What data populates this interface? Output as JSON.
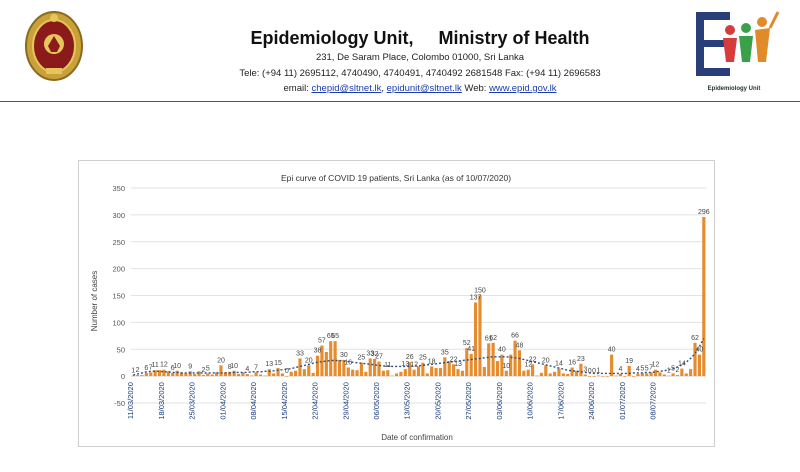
{
  "header": {
    "title": "Epidemiology Unit,     Ministry of Health",
    "address": "231, De Saram Place, Colombo 01000, Sri Lanka",
    "phone_line": "Tele: (+94 11) 2695112, 4740490, 4740491, 4740492 2681548  Fax: (+94 11) 2696583",
    "email_label": "email: ",
    "email1": "chepid@sltnet.lk",
    "email_sep": ", ",
    "email2": "epidunit@sltnet.lk",
    "web_label": " Web: ",
    "web": "www.epid.gov.lk",
    "logo_caption": "Epidemiology Unit"
  },
  "colors": {
    "bar": "#e48c2e",
    "trend": "#2f4f7f",
    "rule": "#555555"
  },
  "chart_data": {
    "type": "bar",
    "title": "Epi curve of COVID 19 patients, Sri Lanka  (as of 10/07/2020)",
    "xlabel": "Date of confirmation",
    "ylabel": "Number of cases",
    "ylim": [
      -50,
      350
    ],
    "yticks": [
      -50,
      0,
      50,
      100,
      150,
      200,
      250,
      300,
      350
    ],
    "grid": true,
    "legend": "none",
    "x_tick_labels": [
      "11/03/2020",
      "18/03/2020",
      "25/03/2020",
      "01/04/2020",
      "08/04/2020",
      "15/04/2020",
      "22/04/2020",
      "29/04/2020",
      "06/05/2020",
      "13/05/2020",
      "20/05/2020",
      "27/05/2020",
      "03/06/2020",
      "10/06/2020",
      "17/06/2020",
      "24/06/2020",
      "01/07/2020",
      "08/07/2020"
    ],
    "start_date": "11/03/2020",
    "values": [
      1,
      2,
      2,
      6,
      7,
      11,
      11,
      12,
      9,
      6,
      10,
      7,
      5,
      9,
      4,
      9,
      2,
      5,
      3,
      7,
      20,
      7,
      8,
      10,
      4,
      7,
      4,
      1,
      7,
      3,
      1,
      13,
      5,
      15,
      5,
      0,
      8,
      10,
      33,
      13,
      20,
      6,
      38,
      57,
      45,
      65,
      65,
      30,
      30,
      16,
      12,
      11,
      25,
      8,
      33,
      32,
      27,
      10,
      11,
      1,
      5,
      8,
      13,
      26,
      12,
      18,
      25,
      5,
      18,
      15,
      15,
      35,
      28,
      22,
      13,
      10,
      52,
      41,
      137,
      150,
      17,
      61,
      62,
      28,
      40,
      10,
      40,
      66,
      48,
      10,
      12,
      22,
      1,
      6,
      20,
      5,
      8,
      14,
      5,
      4,
      16,
      10,
      23,
      3,
      0,
      0,
      1,
      0,
      0,
      40,
      1,
      4,
      0,
      19,
      0,
      4,
      5,
      5,
      7,
      12,
      7,
      3,
      1,
      5,
      2,
      14,
      5,
      13,
      62,
      40,
      296
    ],
    "data_labels": [
      {
        "i": 0,
        "text": "1"
      },
      {
        "i": 1,
        "text": "2"
      },
      {
        "i": 3,
        "text": "6"
      },
      {
        "i": 4,
        "text": "7"
      },
      {
        "i": 5,
        "text": "11"
      },
      {
        "i": 7,
        "text": "12"
      },
      {
        "i": 9,
        "text": "6"
      },
      {
        "i": 10,
        "text": "10"
      },
      {
        "i": 13,
        "text": "9"
      },
      {
        "i": 16,
        "text": "2"
      },
      {
        "i": 17,
        "text": "5"
      },
      {
        "i": 20,
        "text": "20"
      },
      {
        "i": 22,
        "text": "8"
      },
      {
        "i": 23,
        "text": "10"
      },
      {
        "i": 26,
        "text": "4"
      },
      {
        "i": 28,
        "text": "7"
      },
      {
        "i": 31,
        "text": "13"
      },
      {
        "i": 33,
        "text": "15"
      },
      {
        "i": 35,
        "text": "0"
      },
      {
        "i": 38,
        "text": "33"
      },
      {
        "i": 40,
        "text": "20"
      },
      {
        "i": 42,
        "text": "38"
      },
      {
        "i": 43,
        "text": "57"
      },
      {
        "i": 45,
        "text": "65"
      },
      {
        "i": 46,
        "text": "65"
      },
      {
        "i": 48,
        "text": "30"
      },
      {
        "i": 49,
        "text": "16"
      },
      {
        "i": 52,
        "text": "25"
      },
      {
        "i": 54,
        "text": "33"
      },
      {
        "i": 55,
        "text": "32"
      },
      {
        "i": 56,
        "text": "27"
      },
      {
        "i": 58,
        "text": "11"
      },
      {
        "i": 62,
        "text": "13"
      },
      {
        "i": 63,
        "text": "26"
      },
      {
        "i": 64,
        "text": "12"
      },
      {
        "i": 66,
        "text": "25"
      },
      {
        "i": 68,
        "text": "18"
      },
      {
        "i": 71,
        "text": "35"
      },
      {
        "i": 73,
        "text": "22"
      },
      {
        "i": 74,
        "text": "13"
      },
      {
        "i": 76,
        "text": "52"
      },
      {
        "i": 77,
        "text": "41"
      },
      {
        "i": 78,
        "text": "137"
      },
      {
        "i": 79,
        "text": "150"
      },
      {
        "i": 81,
        "text": "61"
      },
      {
        "i": 82,
        "text": "62"
      },
      {
        "i": 84,
        "text": "40"
      },
      {
        "i": 85,
        "text": "10"
      },
      {
        "i": 87,
        "text": "66"
      },
      {
        "i": 88,
        "text": "48"
      },
      {
        "i": 90,
        "text": "12"
      },
      {
        "i": 91,
        "text": "22"
      },
      {
        "i": 94,
        "text": "20"
      },
      {
        "i": 97,
        "text": "14"
      },
      {
        "i": 100,
        "text": "16"
      },
      {
        "i": 102,
        "text": "23"
      },
      {
        "i": 103,
        "text": "3"
      },
      {
        "i": 104,
        "text": "0"
      },
      {
        "i": 105,
        "text": "0"
      },
      {
        "i": 106,
        "text": "1"
      },
      {
        "i": 109,
        "text": "40"
      },
      {
        "i": 111,
        "text": "4"
      },
      {
        "i": 113,
        "text": "19"
      },
      {
        "i": 115,
        "text": "4"
      },
      {
        "i": 116,
        "text": "5"
      },
      {
        "i": 117,
        "text": "5"
      },
      {
        "i": 118,
        "text": "7"
      },
      {
        "i": 119,
        "text": "12"
      },
      {
        "i": 122,
        "text": "1"
      },
      {
        "i": 123,
        "text": "5"
      },
      {
        "i": 124,
        "text": "2"
      },
      {
        "i": 125,
        "text": "14"
      },
      {
        "i": 128,
        "text": "62"
      },
      {
        "i": 129,
        "text": "40"
      },
      {
        "i": 130,
        "text": "296"
      }
    ],
    "trend": [
      2,
      4,
      6,
      8,
      9,
      9,
      9,
      8,
      8,
      7,
      7,
      6,
      6,
      6,
      6,
      6,
      6,
      6,
      6,
      6,
      6,
      6,
      6,
      7,
      7,
      7,
      7,
      8,
      8,
      8,
      9,
      9,
      10,
      11,
      12,
      13,
      14,
      16,
      18,
      20,
      22,
      24,
      26,
      27,
      28,
      29,
      29,
      29,
      28,
      27,
      26,
      25,
      24,
      23,
      22,
      21,
      20,
      19,
      19,
      18,
      18,
      18,
      18,
      18,
      19,
      19,
      20,
      21,
      22,
      23,
      24,
      25,
      26,
      27,
      28,
      29,
      30,
      31,
      32,
      33,
      34,
      35,
      36,
      36,
      36,
      36,
      35,
      34,
      33,
      31,
      29,
      27,
      25,
      23,
      21,
      19,
      17,
      15,
      13,
      11,
      10,
      9,
      8,
      7,
      6,
      5,
      5,
      5,
      5,
      5,
      5,
      5,
      5,
      5,
      6,
      6,
      6,
      7,
      7,
      8,
      9,
      10,
      12,
      14,
      17,
      21,
      26,
      33,
      42,
      55,
      70
    ]
  }
}
